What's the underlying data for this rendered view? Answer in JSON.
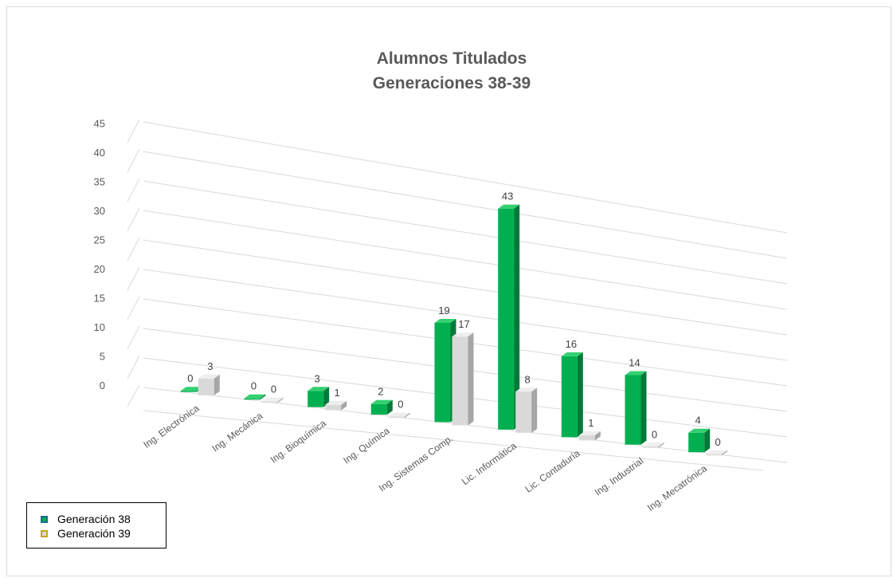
{
  "chart_data": {
    "type": "bar",
    "subtype": "3d-clustered-column",
    "title": [
      "Alumnos Titulados",
      "Generaciones 38-39"
    ],
    "xlabel": "",
    "ylabel": "",
    "ylim": [
      0,
      45
    ],
    "yticks": [
      "0",
      "5",
      "10",
      "15",
      "20",
      "25",
      "30",
      "35",
      "40",
      "45"
    ],
    "grid": true,
    "legend_position": "bottom-left",
    "categories": [
      "Ing. Electrónica",
      "Ing. Mecánica",
      "Ing. Bioquímica",
      "Ing. Química",
      "Ing. Sistemas Comp.",
      "Lic. Informática",
      "Lic. Contaduría",
      "Ing. Industrial",
      "Ing. Mecatrónica"
    ],
    "series": [
      {
        "name": "Generación 38",
        "color": "#00b050",
        "values": [
          0,
          0,
          3,
          2,
          19,
          43,
          16,
          14,
          4
        ]
      },
      {
        "name": "Generación 39",
        "color": "#d9d9d9",
        "values": [
          3,
          0,
          1,
          0,
          17,
          8,
          1,
          0,
          0
        ]
      }
    ]
  }
}
